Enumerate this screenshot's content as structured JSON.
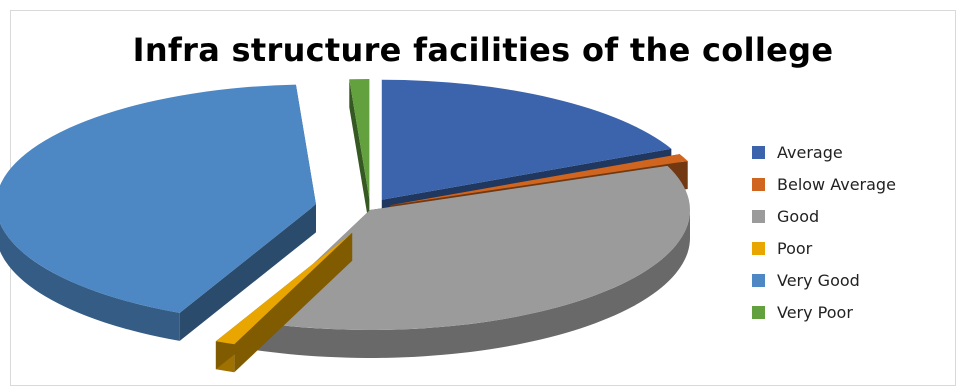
{
  "chart_data": {
    "type": "pie",
    "title": "Infra structure facilities of the college",
    "categories": [
      "Average",
      "Below Average",
      "Good",
      "Poor",
      "Very Good",
      "Very Poor"
    ],
    "values": [
      18,
      1,
      37,
      1,
      42,
      1
    ],
    "colors": [
      "#3b64ad",
      "#d0651f",
      "#9b9b9b",
      "#e9a600",
      "#4d88c4",
      "#63a13f"
    ],
    "legend_position": "right",
    "style": "3d-exploded"
  }
}
